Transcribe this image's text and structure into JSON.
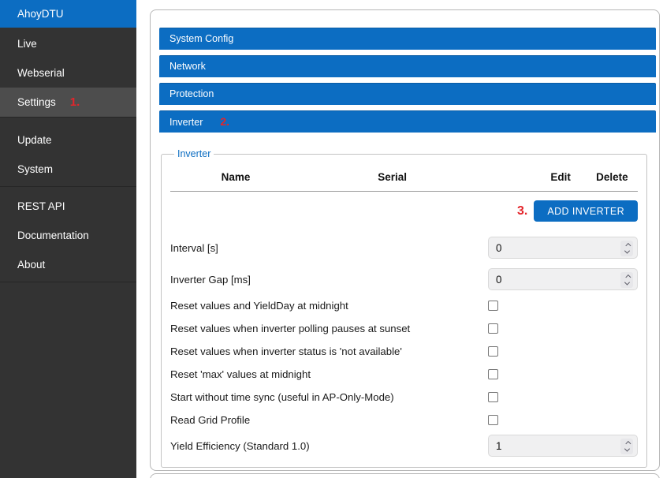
{
  "colors": {
    "accent_blue": "#0c6dc2",
    "sidebar_bg": "#333333",
    "sidebar_active_bg": "#4d4d4d",
    "annotation_red": "#e4252b"
  },
  "sidebar": {
    "brand": "AhoyDTU",
    "groups": [
      {
        "items": [
          {
            "label": "Live"
          },
          {
            "label": "Webserial"
          },
          {
            "label": "Settings",
            "active": true,
            "annotation": "1."
          }
        ]
      },
      {
        "items": [
          {
            "label": "Update"
          },
          {
            "label": "System"
          }
        ]
      },
      {
        "items": [
          {
            "label": "REST API"
          },
          {
            "label": "Documentation"
          },
          {
            "label": "About"
          }
        ]
      }
    ]
  },
  "accordion": [
    {
      "label": "System Config"
    },
    {
      "label": "Network"
    },
    {
      "label": "Protection"
    },
    {
      "label": "Inverter",
      "annotation": "2."
    }
  ],
  "inverter_panel": {
    "legend": "Inverter",
    "table": {
      "headers": [
        "Name",
        "Serial",
        "Edit",
        "Delete"
      ],
      "rows": []
    },
    "add_button": {
      "label": "ADD INVERTER",
      "annotation": "3."
    },
    "fields": [
      {
        "label": "Interval [s]",
        "type": "number",
        "value": "0"
      },
      {
        "label": "Inverter Gap [ms]",
        "type": "number",
        "value": "0"
      },
      {
        "label": "Reset values and YieldDay at midnight",
        "type": "checkbox",
        "checked": false
      },
      {
        "label": "Reset values when inverter polling pauses at sunset",
        "type": "checkbox",
        "checked": false
      },
      {
        "label": "Reset values when inverter status is 'not available'",
        "type": "checkbox",
        "checked": false
      },
      {
        "label": "Reset 'max' values at midnight",
        "type": "checkbox",
        "checked": false
      },
      {
        "label": "Start without time sync (useful in AP-Only-Mode)",
        "type": "checkbox",
        "checked": false
      },
      {
        "label": "Read Grid Profile",
        "type": "checkbox",
        "checked": false
      },
      {
        "label": "Yield Efficiency (Standard 1.0)",
        "type": "number",
        "value": "1"
      }
    ]
  }
}
